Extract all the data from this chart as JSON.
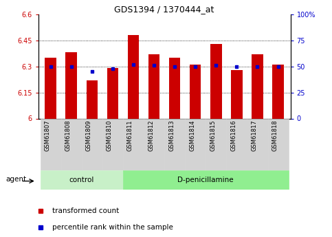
{
  "title": "GDS1394 / 1370444_at",
  "samples": [
    "GSM61807",
    "GSM61808",
    "GSM61809",
    "GSM61810",
    "GSM61811",
    "GSM61812",
    "GSM61813",
    "GSM61814",
    "GSM61815",
    "GSM61816",
    "GSM61817",
    "GSM61818"
  ],
  "bar_values": [
    6.35,
    6.38,
    6.22,
    6.29,
    6.48,
    6.37,
    6.35,
    6.31,
    6.43,
    6.28,
    6.37,
    6.31
  ],
  "percentile_values": [
    50,
    50,
    45,
    48,
    52,
    51,
    50,
    50,
    51,
    50,
    50,
    50
  ],
  "bar_color": "#CC0000",
  "percentile_color": "#0000CC",
  "ylim": [
    6.0,
    6.6
  ],
  "y2lim": [
    0,
    100
  ],
  "yticks": [
    6.0,
    6.15,
    6.3,
    6.45,
    6.6
  ],
  "ytick_labels": [
    "6",
    "6.15",
    "6.3",
    "6.45",
    "6.6"
  ],
  "y2ticks": [
    0,
    25,
    50,
    75,
    100
  ],
  "y2tick_labels": [
    "0",
    "25",
    "50",
    "75",
    "100%"
  ],
  "n_control": 4,
  "n_dpen": 8,
  "group_labels": [
    "control",
    "D-penicillamine"
  ],
  "agent_label": "agent",
  "legend_tc": "transformed count",
  "legend_pr": "percentile rank within the sample",
  "bg_color_control": "#c8f0c8",
  "bg_color_dpen": "#90ee90",
  "tick_label_bg": "#d3d3d3",
  "bar_width": 0.55,
  "base_value": 6.0,
  "grid_lines": [
    6.15,
    6.3,
    6.45
  ],
  "fig_width": 4.83,
  "fig_height": 3.45,
  "dpi": 100
}
